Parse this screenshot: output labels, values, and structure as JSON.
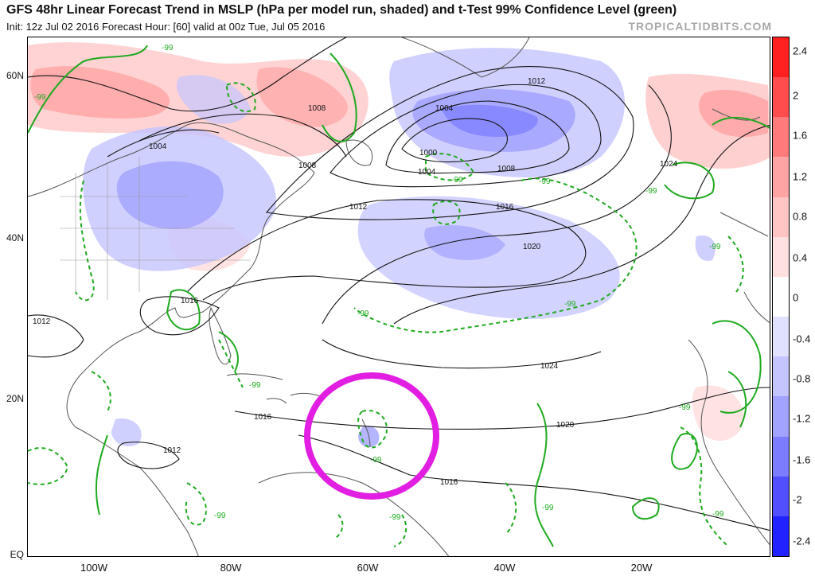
{
  "header": {
    "title": "GFS 48hr Linear Forecast Trend in MSLP (hPa per model run, shaded) and t-Test 99% Confidence Level (green)",
    "subtitle": "Init: 12z Jul 02 2016   Forecast Hour: [60]   valid at 00z Tue, Jul 05 2016",
    "brand": "TROPICALTIDBITS.COM"
  },
  "map": {
    "lat_labels": [
      "60N",
      "40N",
      "20N",
      "EQ"
    ],
    "lon_labels": [
      "100W",
      "80W",
      "60W",
      "40W",
      "20W"
    ],
    "isobar_labels": [
      "1012",
      "1008",
      "1004",
      "1004",
      "1008",
      "1000",
      "1004",
      "1008",
      "1012",
      "1016",
      "1020",
      "1024",
      "1016",
      "1012",
      "1016",
      "1024",
      "1020",
      "1012",
      "1016"
    ],
    "confidence_labels": [
      "-99",
      "-99",
      "-99",
      "-99",
      "-99",
      "-99",
      "-99",
      "-99",
      "-99",
      "-99",
      "-99",
      "-99",
      "-99",
      "-99",
      "-99"
    ],
    "highlight_color": "#e21ee2",
    "contour_color": "#111111",
    "confidence_color": "#1faa1f"
  },
  "colorbar": {
    "labels": [
      "2.4",
      "2",
      "1.6",
      "1.2",
      "0.8",
      "0.4",
      "0",
      "-0.4",
      "-0.8",
      "-1.2",
      "-1.6",
      "-2",
      "-2.4"
    ],
    "colors": [
      "#ff2020",
      "#ff4c4c",
      "#ff7a7a",
      "#ffa4a4",
      "#ffc4c4",
      "#ffe0e0",
      "#ffffff",
      "#e0e0ff",
      "#c4c4ff",
      "#a2a2ff",
      "#7c7cff",
      "#5050ff",
      "#2222ff"
    ]
  }
}
